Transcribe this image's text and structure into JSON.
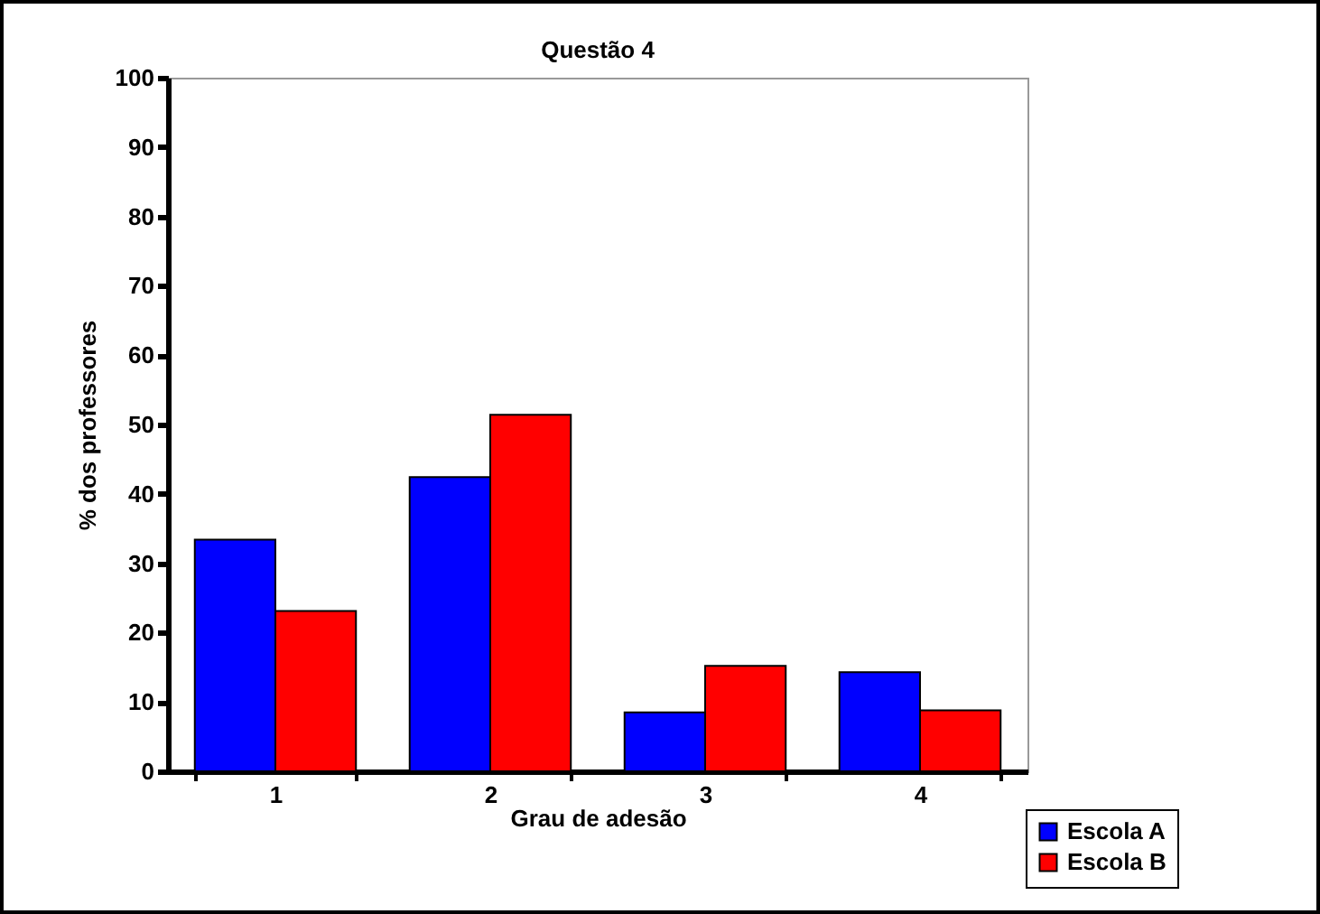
{
  "chart_data": {
    "type": "bar",
    "title": "Questão 4",
    "xlabel": "Grau de adesão",
    "ylabel": "% dos professores",
    "categories": [
      "1",
      "2",
      "3",
      "4"
    ],
    "series": [
      {
        "name": "Escola A",
        "color": "#0000ff",
        "values": [
          33.4,
          42.4,
          8.5,
          14.3
        ]
      },
      {
        "name": "Escola B",
        "color": "#ff0000",
        "values": [
          23.1,
          51.4,
          15.2,
          8.8
        ]
      }
    ],
    "ylim": [
      0,
      100
    ],
    "yticks": [
      0,
      10,
      20,
      30,
      40,
      50,
      60,
      70,
      80,
      90,
      100
    ],
    "grid": false,
    "legend": "bottom right"
  }
}
